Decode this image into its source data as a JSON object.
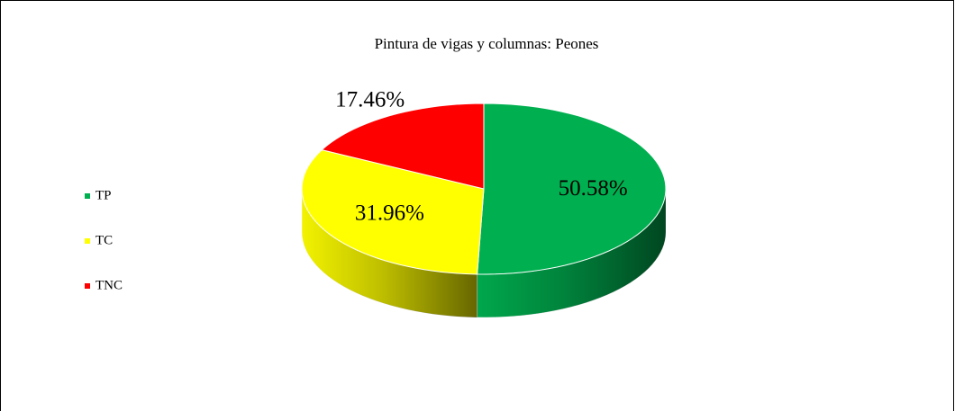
{
  "chart_data": {
    "type": "pie",
    "title": "Pintura de vigas y columnas: Peones",
    "categories": [
      "TP",
      "TC",
      "TNC"
    ],
    "values": [
      50.58,
      31.96,
      17.46
    ],
    "value_labels": [
      "50.58%",
      "31.96%",
      "17.46%"
    ],
    "colors": [
      "#00b050",
      "#ffff00",
      "#ff0000"
    ],
    "legend": "left",
    "style": "3d"
  }
}
